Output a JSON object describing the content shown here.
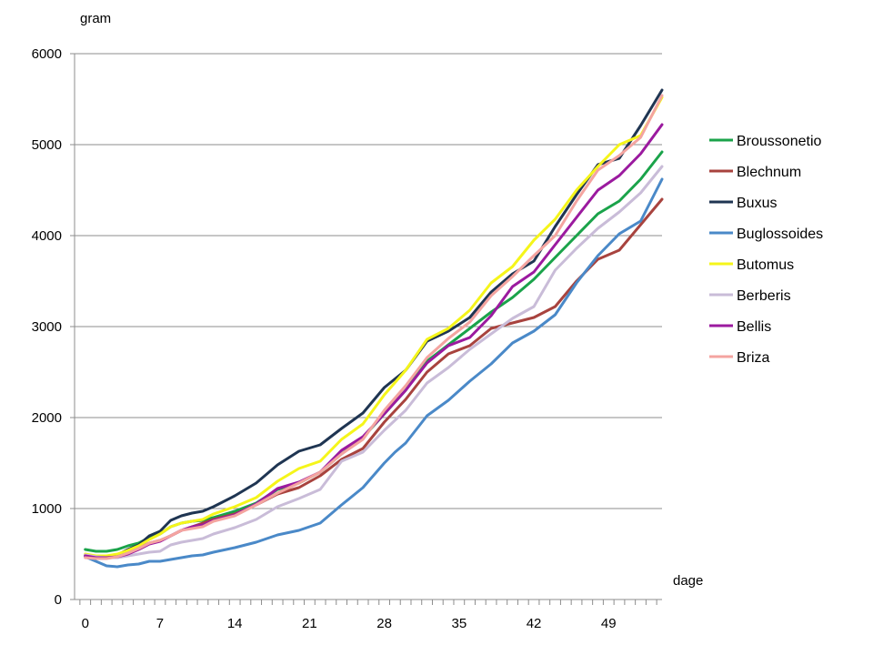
{
  "chart_data": {
    "type": "line",
    "title": "",
    "ylabel": "gram",
    "xlabel": "dage",
    "ylim": [
      0,
      6000
    ],
    "xlim": [
      -1,
      54
    ],
    "yticks": [
      0,
      1000,
      2000,
      3000,
      4000,
      5000,
      6000
    ],
    "xticks": [
      0,
      7,
      14,
      21,
      28,
      35,
      42,
      49
    ],
    "grid": "horizontal",
    "legend": "right",
    "series": [
      {
        "name": "Broussonetio",
        "color": "#1aa34a",
        "points": [
          [
            0,
            550
          ],
          [
            1,
            530
          ],
          [
            2,
            530
          ],
          [
            3,
            550
          ],
          [
            4,
            590
          ],
          [
            5,
            620
          ],
          [
            6,
            680
          ],
          [
            7,
            720
          ],
          [
            8,
            800
          ],
          [
            9,
            840
          ],
          [
            10,
            860
          ],
          [
            11,
            870
          ],
          [
            12,
            900
          ],
          [
            14,
            970
          ],
          [
            16,
            1060
          ],
          [
            18,
            1210
          ],
          [
            20,
            1280
          ],
          [
            22,
            1400
          ],
          [
            24,
            1600
          ],
          [
            26,
            1780
          ],
          [
            28,
            2040
          ],
          [
            30,
            2300
          ],
          [
            32,
            2620
          ],
          [
            34,
            2800
          ],
          [
            36,
            2980
          ],
          [
            38,
            3160
          ],
          [
            40,
            3320
          ],
          [
            42,
            3520
          ],
          [
            44,
            3760
          ],
          [
            46,
            4000
          ],
          [
            48,
            4240
          ],
          [
            50,
            4380
          ],
          [
            52,
            4620
          ],
          [
            54,
            4920
          ]
        ]
      },
      {
        "name": "Blechnum",
        "color": "#a8433e",
        "points": [
          [
            0,
            490
          ],
          [
            1,
            460
          ],
          [
            2,
            460
          ],
          [
            3,
            470
          ],
          [
            4,
            510
          ],
          [
            5,
            570
          ],
          [
            6,
            620
          ],
          [
            7,
            650
          ],
          [
            8,
            700
          ],
          [
            9,
            760
          ],
          [
            10,
            800
          ],
          [
            11,
            840
          ],
          [
            12,
            880
          ],
          [
            14,
            940
          ],
          [
            16,
            1040
          ],
          [
            18,
            1160
          ],
          [
            20,
            1230
          ],
          [
            22,
            1360
          ],
          [
            24,
            1540
          ],
          [
            26,
            1660
          ],
          [
            28,
            1950
          ],
          [
            30,
            2200
          ],
          [
            32,
            2500
          ],
          [
            34,
            2700
          ],
          [
            36,
            2790
          ],
          [
            38,
            2980
          ],
          [
            40,
            3040
          ],
          [
            42,
            3100
          ],
          [
            44,
            3220
          ],
          [
            46,
            3500
          ],
          [
            48,
            3740
          ],
          [
            50,
            3840
          ],
          [
            52,
            4120
          ],
          [
            54,
            4400
          ]
        ]
      },
      {
        "name": "Buxus",
        "color": "#1f3552",
        "points": [
          [
            0,
            480
          ],
          [
            1,
            460
          ],
          [
            2,
            460
          ],
          [
            3,
            490
          ],
          [
            4,
            550
          ],
          [
            5,
            600
          ],
          [
            6,
            700
          ],
          [
            7,
            750
          ],
          [
            8,
            870
          ],
          [
            9,
            920
          ],
          [
            10,
            950
          ],
          [
            11,
            970
          ],
          [
            12,
            1020
          ],
          [
            14,
            1140
          ],
          [
            16,
            1280
          ],
          [
            18,
            1480
          ],
          [
            20,
            1630
          ],
          [
            22,
            1700
          ],
          [
            24,
            1880
          ],
          [
            26,
            2050
          ],
          [
            28,
            2330
          ],
          [
            30,
            2520
          ],
          [
            32,
            2840
          ],
          [
            34,
            2950
          ],
          [
            36,
            3100
          ],
          [
            38,
            3380
          ],
          [
            40,
            3580
          ],
          [
            42,
            3720
          ],
          [
            44,
            4100
          ],
          [
            46,
            4450
          ],
          [
            48,
            4780
          ],
          [
            50,
            4850
          ],
          [
            52,
            5210
          ],
          [
            54,
            5600
          ]
        ]
      },
      {
        "name": "Buglossoides",
        "color": "#4a89c8",
        "points": [
          [
            0,
            470
          ],
          [
            1,
            420
          ],
          [
            2,
            370
          ],
          [
            3,
            360
          ],
          [
            4,
            380
          ],
          [
            5,
            390
          ],
          [
            6,
            420
          ],
          [
            7,
            420
          ],
          [
            8,
            440
          ],
          [
            9,
            460
          ],
          [
            10,
            480
          ],
          [
            11,
            490
          ],
          [
            12,
            520
          ],
          [
            14,
            570
          ],
          [
            16,
            630
          ],
          [
            18,
            710
          ],
          [
            20,
            760
          ],
          [
            22,
            840
          ],
          [
            24,
            1040
          ],
          [
            26,
            1230
          ],
          [
            28,
            1500
          ],
          [
            29,
            1620
          ],
          [
            30,
            1720
          ],
          [
            32,
            2020
          ],
          [
            34,
            2190
          ],
          [
            36,
            2400
          ],
          [
            38,
            2590
          ],
          [
            40,
            2820
          ],
          [
            42,
            2950
          ],
          [
            44,
            3130
          ],
          [
            46,
            3480
          ],
          [
            48,
            3780
          ],
          [
            50,
            4020
          ],
          [
            52,
            4160
          ],
          [
            54,
            4620
          ]
        ]
      },
      {
        "name": "Butomus",
        "color": "#f5f51a",
        "points": [
          [
            0,
            500
          ],
          [
            1,
            480
          ],
          [
            2,
            480
          ],
          [
            3,
            500
          ],
          [
            4,
            540
          ],
          [
            5,
            590
          ],
          [
            6,
            660
          ],
          [
            7,
            720
          ],
          [
            8,
            800
          ],
          [
            9,
            840
          ],
          [
            10,
            860
          ],
          [
            11,
            880
          ],
          [
            12,
            940
          ],
          [
            14,
            1020
          ],
          [
            16,
            1120
          ],
          [
            18,
            1300
          ],
          [
            20,
            1440
          ],
          [
            22,
            1520
          ],
          [
            24,
            1760
          ],
          [
            26,
            1930
          ],
          [
            28,
            2250
          ],
          [
            30,
            2520
          ],
          [
            32,
            2860
          ],
          [
            34,
            2980
          ],
          [
            36,
            3180
          ],
          [
            38,
            3480
          ],
          [
            40,
            3660
          ],
          [
            42,
            3950
          ],
          [
            44,
            4180
          ],
          [
            46,
            4500
          ],
          [
            48,
            4760
          ],
          [
            50,
            5000
          ],
          [
            52,
            5100
          ],
          [
            54,
            5520
          ]
        ]
      },
      {
        "name": "Berberis",
        "color": "#c9bcd8",
        "points": [
          [
            0,
            490
          ],
          [
            1,
            470
          ],
          [
            2,
            460
          ],
          [
            3,
            460
          ],
          [
            4,
            480
          ],
          [
            5,
            500
          ],
          [
            6,
            520
          ],
          [
            7,
            530
          ],
          [
            8,
            600
          ],
          [
            9,
            630
          ],
          [
            10,
            650
          ],
          [
            11,
            670
          ],
          [
            12,
            720
          ],
          [
            14,
            790
          ],
          [
            16,
            880
          ],
          [
            18,
            1020
          ],
          [
            20,
            1110
          ],
          [
            22,
            1210
          ],
          [
            24,
            1520
          ],
          [
            26,
            1620
          ],
          [
            28,
            1860
          ],
          [
            30,
            2080
          ],
          [
            32,
            2380
          ],
          [
            34,
            2550
          ],
          [
            36,
            2750
          ],
          [
            38,
            2920
          ],
          [
            40,
            3090
          ],
          [
            42,
            3220
          ],
          [
            44,
            3620
          ],
          [
            46,
            3860
          ],
          [
            48,
            4080
          ],
          [
            50,
            4260
          ],
          [
            52,
            4470
          ],
          [
            54,
            4760
          ]
        ]
      },
      {
        "name": "Bellis",
        "color": "#9b1a9f",
        "points": [
          [
            0,
            480
          ],
          [
            1,
            460
          ],
          [
            2,
            460
          ],
          [
            3,
            470
          ],
          [
            4,
            500
          ],
          [
            5,
            550
          ],
          [
            6,
            610
          ],
          [
            7,
            640
          ],
          [
            8,
            700
          ],
          [
            9,
            760
          ],
          [
            10,
            800
          ],
          [
            11,
            820
          ],
          [
            12,
            870
          ],
          [
            14,
            930
          ],
          [
            16,
            1050
          ],
          [
            18,
            1220
          ],
          [
            20,
            1290
          ],
          [
            22,
            1400
          ],
          [
            24,
            1640
          ],
          [
            26,
            1790
          ],
          [
            28,
            2040
          ],
          [
            30,
            2300
          ],
          [
            32,
            2600
          ],
          [
            34,
            2790
          ],
          [
            36,
            2880
          ],
          [
            38,
            3120
          ],
          [
            40,
            3440
          ],
          [
            42,
            3600
          ],
          [
            44,
            3900
          ],
          [
            46,
            4200
          ],
          [
            48,
            4500
          ],
          [
            50,
            4660
          ],
          [
            52,
            4900
          ],
          [
            54,
            5220
          ]
        ]
      },
      {
        "name": "Briza",
        "color": "#f4a4a0",
        "points": [
          [
            0,
            460
          ],
          [
            1,
            450
          ],
          [
            2,
            450
          ],
          [
            3,
            470
          ],
          [
            4,
            510
          ],
          [
            5,
            560
          ],
          [
            6,
            620
          ],
          [
            7,
            650
          ],
          [
            8,
            700
          ],
          [
            9,
            760
          ],
          [
            10,
            780
          ],
          [
            11,
            800
          ],
          [
            12,
            860
          ],
          [
            14,
            920
          ],
          [
            16,
            1040
          ],
          [
            18,
            1170
          ],
          [
            20,
            1280
          ],
          [
            22,
            1400
          ],
          [
            24,
            1600
          ],
          [
            26,
            1760
          ],
          [
            28,
            2080
          ],
          [
            30,
            2350
          ],
          [
            32,
            2660
          ],
          [
            34,
            2870
          ],
          [
            36,
            3050
          ],
          [
            38,
            3340
          ],
          [
            40,
            3550
          ],
          [
            42,
            3780
          ],
          [
            44,
            4000
          ],
          [
            46,
            4380
          ],
          [
            48,
            4720
          ],
          [
            50,
            4880
          ],
          [
            52,
            5080
          ],
          [
            54,
            5540
          ]
        ]
      }
    ]
  }
}
